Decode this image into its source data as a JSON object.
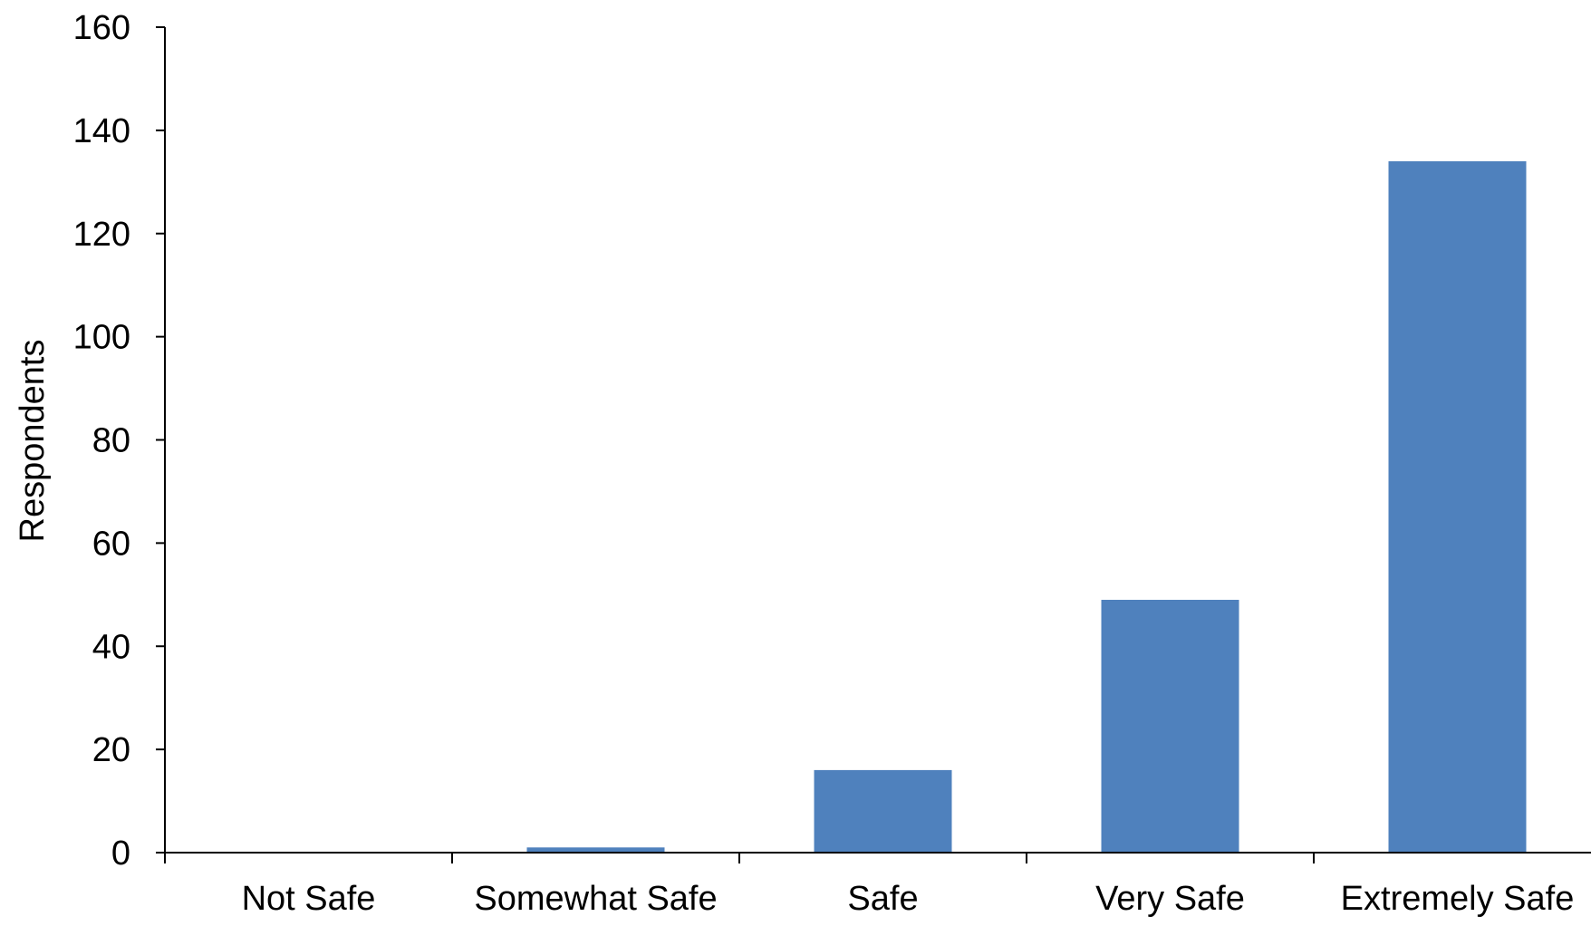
{
  "chart_data": {
    "type": "bar",
    "title": "",
    "xlabel": "",
    "ylabel": "Respondents",
    "categories": [
      "Not Safe",
      "Somewhat Safe",
      "Safe",
      "Very Safe",
      "Extremely Safe"
    ],
    "values": [
      0,
      1,
      16,
      49,
      134
    ],
    "ylim": [
      0,
      160
    ],
    "yticks": [
      0,
      20,
      40,
      60,
      80,
      100,
      120,
      140,
      160
    ],
    "grid": false,
    "legend": "none",
    "bar_color": "#4F81BD",
    "axis_color": "#000000"
  }
}
